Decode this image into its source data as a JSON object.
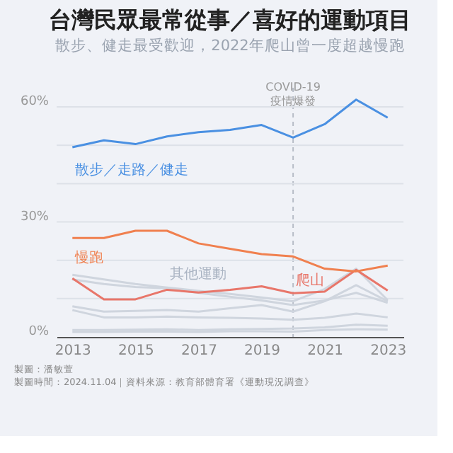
{
  "chart_data": {
    "type": "line",
    "title": "台灣民眾最常從事／喜好的運動項目",
    "subtitle": "散步、健走最受歡迎，2022年爬山曾一度超越慢跑",
    "x": [
      2013,
      2014,
      2015,
      2016,
      2017,
      2018,
      2019,
      2020,
      2021,
      2022,
      2023
    ],
    "xlim": [
      2012.5,
      2023.5
    ],
    "xticks": [
      2013,
      2015,
      2017,
      2019,
      2021,
      2023
    ],
    "ylim": [
      0,
      65
    ],
    "yticks": [
      {
        "value": 0,
        "label": "0%"
      },
      {
        "value": 10,
        "label": null
      },
      {
        "value": 20,
        "label": null
      },
      {
        "value": 30,
        "label": "30%"
      },
      {
        "value": 40,
        "label": null
      },
      {
        "value": 50,
        "label": null
      },
      {
        "value": 60,
        "label": "60%"
      }
    ],
    "grid": "y",
    "legend": false,
    "marker": "none",
    "line_style": "solid",
    "series": [
      {
        "name": "其他運動",
        "color": "#cfd5de",
        "values": [
          16.2,
          15.0,
          13.8,
          12.9,
          12.0,
          11.2,
          10.3,
          9.3,
          12.5,
          17.8,
          9.6
        ]
      },
      {
        "color": "#cfd5de",
        "values": [
          15.0,
          13.8,
          13.0,
          12.7,
          11.5,
          10.5,
          9.5,
          8.3,
          9.5,
          11.5,
          8.9
        ]
      },
      {
        "color": "#cfd5de",
        "values": [
          8.0,
          6.6,
          6.8,
          7.0,
          6.6,
          7.5,
          8.3,
          6.6,
          9.3,
          13.5,
          9.3
        ]
      },
      {
        "color": "#cfd5de",
        "values": [
          7.0,
          5.1,
          5.1,
          5.3,
          5.1,
          5.0,
          4.8,
          4.5,
          5.0,
          6.1,
          5.1
        ]
      },
      {
        "color": "#cfd5de",
        "values": [
          1.8,
          1.8,
          1.9,
          2.0,
          1.8,
          2.0,
          2.1,
          2.2,
          2.5,
          3.2,
          2.9
        ]
      },
      {
        "color": "#cfd5de",
        "values": [
          1.3,
          1.3,
          1.4,
          1.4,
          1.3,
          1.5,
          1.5,
          1.4,
          1.8,
          2.0,
          1.9
        ]
      },
      {
        "name": "爬山",
        "color": "#e8766a",
        "values": [
          15.3,
          9.8,
          9.8,
          12.3,
          11.6,
          12.3,
          13.2,
          11.4,
          11.8,
          17.5,
          12.1
        ]
      },
      {
        "name": "慢跑",
        "color": "#f0804f",
        "values": [
          25.8,
          25.8,
          27.7,
          27.7,
          24.4,
          23.0,
          21.6,
          21.0,
          17.8,
          17.1,
          18.6
        ]
      },
      {
        "name": "散步／走路／健走",
        "color": "#4a90e2",
        "values": [
          49.5,
          51.3,
          50.3,
          52.3,
          53.4,
          54.0,
          55.3,
          52.0,
          55.5,
          61.9,
          57.2
        ]
      }
    ],
    "ref_lines": [
      {
        "axis": "x",
        "value": 2020,
        "label": "COVID-19\n疫情爆發",
        "color": "#b8bec8",
        "line_style": "dashed"
      }
    ],
    "annotations": [
      "製圖：潘敏萱",
      "製圖時間：2024.11.04｜資料來源：教育部體育署《運動現況調查》"
    ]
  }
}
